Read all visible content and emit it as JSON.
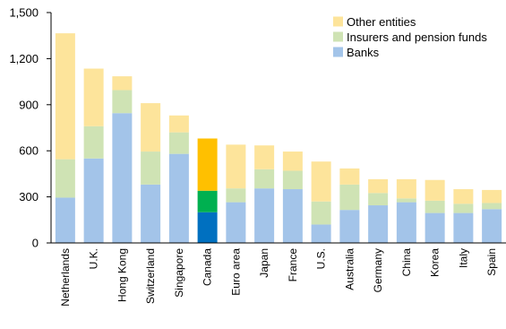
{
  "chart_data": {
    "type": "bar",
    "stacked": true,
    "categories": [
      "Netherlands",
      "U.K.",
      "Hong Kong",
      "Switzerland",
      "Singapore",
      "Canada",
      "Euro area",
      "Japan",
      "France",
      "U.S.",
      "Australia",
      "Germany",
      "China",
      "Korea",
      "Italy",
      "Spain"
    ],
    "series": [
      {
        "name": "Banks",
        "values": [
          295,
          550,
          845,
          380,
          580,
          200,
          265,
          355,
          350,
          120,
          215,
          245,
          265,
          195,
          195,
          220
        ]
      },
      {
        "name": "Insurers and pension funds",
        "values": [
          250,
          210,
          150,
          215,
          140,
          140,
          90,
          125,
          120,
          150,
          165,
          80,
          25,
          80,
          60,
          40
        ]
      },
      {
        "name": "Other entities",
        "values": [
          820,
          375,
          90,
          315,
          110,
          340,
          285,
          155,
          125,
          260,
          105,
          90,
          125,
          135,
          95,
          85
        ]
      }
    ],
    "highlight_category": "Canada",
    "colors": {
      "Banks": "#a3c4e9",
      "Insurers and pension funds": "#cfe3b4",
      "Other entities": "#fde49b",
      "highlight": {
        "Banks": "#0070c0",
        "Insurers and pension funds": "#00b050",
        "Other entities": "#ffc000"
      }
    },
    "ylim": [
      0,
      1500
    ],
    "yticks": [
      0,
      300,
      600,
      900,
      1200,
      1500
    ],
    "ytick_labels": [
      "0",
      "300",
      "600",
      "900",
      "1,200",
      "1,500"
    ],
    "legend_position": "top-right",
    "legend_order": [
      "Other entities",
      "Insurers and pension funds",
      "Banks"
    ],
    "grid": false,
    "title": "",
    "xlabel": "",
    "ylabel": ""
  }
}
